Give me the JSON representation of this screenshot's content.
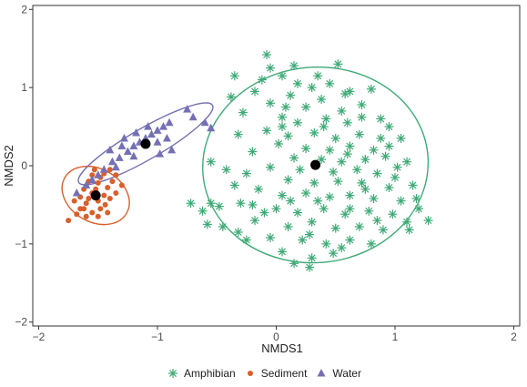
{
  "chart_data": {
    "type": "scatter",
    "xlabel": "NMDS1",
    "ylabel": "NMDS2",
    "xlim": [
      -2.05,
      2.05
    ],
    "ylim": [
      -2.05,
      2.05
    ],
    "xticks": [
      -2,
      -1,
      0,
      1,
      2
    ],
    "yticks": [
      -2,
      -1,
      0,
      1,
      2
    ],
    "x_tick_labels": [
      "−2",
      "−1",
      "0",
      "1",
      "2"
    ],
    "y_tick_labels": [
      "−2",
      "−1",
      "0",
      "1",
      "2"
    ],
    "grid": false,
    "legend_position": "bottom",
    "series": [
      {
        "name": "Amphibian",
        "marker": "asterisk",
        "color": "#3faa77",
        "centroid": [
          0.33,
          0.01
        ],
        "ellipse": {
          "center": [
            0.33,
            0.01
          ],
          "rx": 0.95,
          "ry": 1.25,
          "angle_deg": 5
        },
        "points": [
          [
            -0.08,
            1.42
          ],
          [
            -0.05,
            1.25
          ],
          [
            0.05,
            1.15
          ],
          [
            -0.12,
            1.1
          ],
          [
            0.15,
            1.28
          ],
          [
            0.52,
            1.3
          ],
          [
            -0.35,
            1.15
          ],
          [
            -0.18,
            0.95
          ],
          [
            0.12,
            0.9
          ],
          [
            0.3,
            1.0
          ],
          [
            0.45,
            1.05
          ],
          [
            0.62,
            0.95
          ],
          [
            0.8,
            0.98
          ],
          [
            -0.38,
            0.88
          ],
          [
            -0.05,
            0.8
          ],
          [
            0.25,
            0.75
          ],
          [
            0.38,
            0.85
          ],
          [
            0.55,
            0.7
          ],
          [
            0.72,
            0.78
          ],
          [
            -0.28,
            0.68
          ],
          [
            0.05,
            0.62
          ],
          [
            0.18,
            0.55
          ],
          [
            0.42,
            0.6
          ],
          [
            0.6,
            0.55
          ],
          [
            0.88,
            0.6
          ],
          [
            -0.08,
            0.45
          ],
          [
            0.1,
            0.38
          ],
          [
            0.32,
            0.42
          ],
          [
            0.5,
            0.35
          ],
          [
            0.7,
            0.4
          ],
          [
            0.95,
            0.5
          ],
          [
            1.05,
            0.35
          ],
          [
            -0.32,
            0.4
          ],
          [
            0.02,
            0.28
          ],
          [
            0.25,
            0.22
          ],
          [
            0.45,
            0.2
          ],
          [
            0.62,
            0.25
          ],
          [
            0.82,
            0.2
          ],
          [
            -0.2,
            0.18
          ],
          [
            0.15,
            0.1
          ],
          [
            0.38,
            0.08
          ],
          [
            0.55,
            0.05
          ],
          [
            0.75,
            0.08
          ],
          [
            0.92,
            0.12
          ],
          [
            1.1,
            0.05
          ],
          [
            -0.05,
            -0.02
          ],
          [
            0.2,
            -0.05
          ],
          [
            0.48,
            -0.08
          ],
          [
            0.68,
            -0.05
          ],
          [
            0.85,
            -0.1
          ],
          [
            1.0,
            -0.15
          ],
          [
            -0.25,
            -0.1
          ],
          [
            0.1,
            -0.18
          ],
          [
            0.32,
            -0.22
          ],
          [
            0.52,
            -0.2
          ],
          [
            0.72,
            -0.22
          ],
          [
            0.95,
            -0.28
          ],
          [
            1.15,
            -0.25
          ],
          [
            -0.15,
            -0.3
          ],
          [
            0.05,
            -0.38
          ],
          [
            0.25,
            -0.35
          ],
          [
            0.45,
            -0.4
          ],
          [
            0.62,
            -0.38
          ],
          [
            0.82,
            -0.42
          ],
          [
            1.05,
            -0.45
          ],
          [
            -0.3,
            -0.48
          ],
          [
            0.0,
            -0.55
          ],
          [
            0.18,
            -0.6
          ],
          [
            0.4,
            -0.55
          ],
          [
            0.58,
            -0.62
          ],
          [
            0.78,
            -0.58
          ],
          [
            0.98,
            -0.62
          ],
          [
            1.2,
            -0.55
          ],
          [
            -0.18,
            -0.7
          ],
          [
            0.1,
            -0.78
          ],
          [
            0.3,
            -0.72
          ],
          [
            0.5,
            -0.8
          ],
          [
            0.7,
            -0.78
          ],
          [
            0.9,
            -0.82
          ],
          [
            1.1,
            -0.72
          ],
          [
            -0.05,
            -0.92
          ],
          [
            0.22,
            -0.95
          ],
          [
            0.42,
            -1.0
          ],
          [
            0.62,
            -0.95
          ],
          [
            0.8,
            -1.0
          ],
          [
            0.05,
            -1.1
          ],
          [
            0.3,
            -1.18
          ],
          [
            0.48,
            -1.12
          ],
          [
            0.15,
            -1.25
          ],
          [
            0.28,
            -1.3
          ],
          [
            -0.72,
            -0.48
          ],
          [
            -0.62,
            -0.58
          ],
          [
            -0.55,
            -0.48
          ],
          [
            -0.48,
            -0.52
          ],
          [
            -0.58,
            -0.75
          ],
          [
            -0.45,
            -0.78
          ],
          [
            -0.32,
            -0.85
          ],
          [
            -0.25,
            -0.95
          ],
          [
            -0.55,
            0.05
          ],
          [
            -0.42,
            -0.05
          ],
          [
            -0.35,
            -0.25
          ],
          [
            0.58,
            0.92
          ],
          [
            0.35,
            1.15
          ],
          [
            0.18,
            1.05
          ],
          [
            0.72,
            0.62
          ],
          [
            0.88,
            0.35
          ],
          [
            1.02,
            -0.02
          ],
          [
            1.18,
            -0.42
          ],
          [
            1.28,
            -0.7
          ],
          [
            1.12,
            -0.82
          ],
          [
            0.85,
            -0.7
          ],
          [
            0.62,
            -0.55
          ],
          [
            0.35,
            -0.45
          ],
          [
            0.12,
            -0.45
          ],
          [
            -0.1,
            -0.6
          ],
          [
            -0.2,
            -0.5
          ],
          [
            0.08,
            0.75
          ],
          [
            0.4,
            0.5
          ],
          [
            0.6,
            0.15
          ],
          [
            0.28,
            -0.88
          ],
          [
            0.55,
            -1.05
          ],
          [
            0.75,
            -0.3
          ],
          [
            0.95,
            0.25
          ],
          [
            0.05,
            0.5
          ]
        ]
      },
      {
        "name": "Sediment",
        "marker": "circle",
        "color": "#d95f2b",
        "centroid": [
          -1.52,
          -0.38
        ],
        "ellipse": {
          "center": [
            -1.52,
            -0.38
          ],
          "rx": 0.3,
          "ry": 0.34,
          "angle_deg": -30
        },
        "points": [
          [
            -1.75,
            -0.7
          ],
          [
            -1.68,
            -0.62
          ],
          [
            -1.62,
            -0.55
          ],
          [
            -1.6,
            -0.48
          ],
          [
            -1.58,
            -0.42
          ],
          [
            -1.55,
            -0.35
          ],
          [
            -1.52,
            -0.3
          ],
          [
            -1.5,
            -0.22
          ],
          [
            -1.48,
            -0.15
          ],
          [
            -1.45,
            -0.1
          ],
          [
            -1.4,
            -0.05
          ],
          [
            -1.65,
            -0.4
          ],
          [
            -1.62,
            -0.3
          ],
          [
            -1.58,
            -0.2
          ],
          [
            -1.55,
            -0.12
          ],
          [
            -1.5,
            -0.45
          ],
          [
            -1.45,
            -0.38
          ],
          [
            -1.42,
            -0.28
          ],
          [
            -1.38,
            -0.2
          ],
          [
            -1.35,
            -0.12
          ],
          [
            -1.48,
            -0.55
          ],
          [
            -1.44,
            -0.5
          ],
          [
            -1.4,
            -0.42
          ],
          [
            -1.55,
            -0.6
          ],
          [
            -1.65,
            -0.55
          ],
          [
            -1.7,
            -0.45
          ],
          [
            -1.6,
            -0.65
          ],
          [
            -1.5,
            -0.65
          ],
          [
            -1.35,
            -0.35
          ],
          [
            -1.42,
            -0.6
          ],
          [
            -1.3,
            -0.25
          ],
          [
            -1.53,
            -0.05
          ]
        ]
      },
      {
        "name": "Water",
        "marker": "triangle",
        "color": "#7570b3",
        "centroid": [
          -1.1,
          0.28
        ],
        "ellipse": {
          "center": [
            -1.1,
            0.28
          ],
          "rx": 0.65,
          "ry": 0.2,
          "angle_deg": 30
        },
        "points": [
          [
            -1.68,
            -0.35
          ],
          [
            -1.6,
            -0.25
          ],
          [
            -1.55,
            -0.18
          ],
          [
            -1.5,
            -0.12
          ],
          [
            -1.45,
            -0.05
          ],
          [
            -1.38,
            0.05
          ],
          [
            -1.32,
            0.1
          ],
          [
            -1.25,
            0.18
          ],
          [
            -1.2,
            0.25
          ],
          [
            -1.15,
            0.3
          ],
          [
            -1.1,
            0.35
          ],
          [
            -1.05,
            0.4
          ],
          [
            -1.0,
            0.45
          ],
          [
            -0.95,
            0.5
          ],
          [
            -0.9,
            0.55
          ],
          [
            -1.28,
            0.35
          ],
          [
            -1.18,
            0.42
          ],
          [
            -1.08,
            0.5
          ],
          [
            -1.0,
            0.3
          ],
          [
            -0.92,
            0.35
          ],
          [
            -0.88,
            0.2
          ],
          [
            -1.2,
            0.12
          ],
          [
            -1.3,
            0.25
          ],
          [
            -0.75,
            0.72
          ],
          [
            -0.7,
            0.62
          ],
          [
            -0.6,
            0.55
          ],
          [
            -0.55,
            0.48
          ],
          [
            -1.4,
            0.2
          ],
          [
            -1.35,
            -0.02
          ],
          [
            -0.98,
            0.15
          ]
        ]
      }
    ]
  }
}
